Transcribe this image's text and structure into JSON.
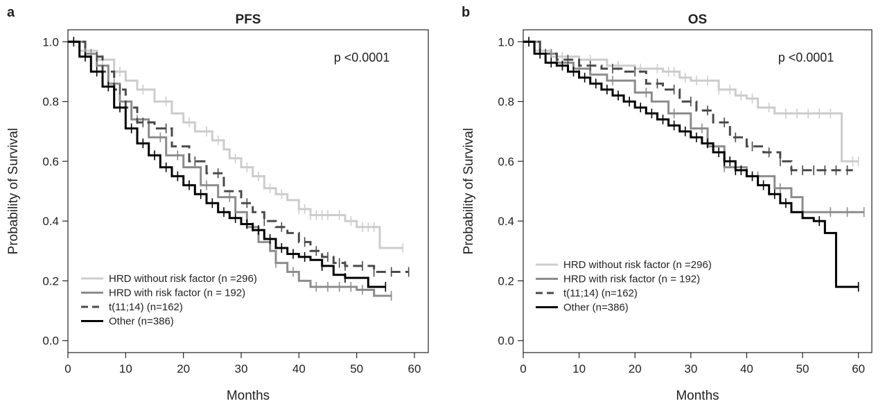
{
  "chart_data": [
    {
      "type": "line",
      "panel_letter": "a",
      "title": "PFS",
      "xlabel": "Months",
      "ylabel": "Probability of Survival",
      "annotation": "p <0.0001",
      "xlim": [
        0,
        60
      ],
      "ylim": [
        0,
        1
      ],
      "xticks": [
        "0",
        "10",
        "20",
        "30",
        "40",
        "50",
        "60"
      ],
      "yticks": [
        "0.0",
        "0.2",
        "0.4",
        "0.6",
        "0.8",
        "1.0"
      ],
      "legend_position": "bottom-left",
      "series": [
        {
          "name": "HRD without risk factor (n =296)",
          "style": "hrd_without",
          "x": [
            0,
            2,
            5,
            8,
            10,
            12,
            15,
            18,
            20,
            22,
            25,
            27,
            28,
            30,
            32,
            34,
            36,
            38,
            40,
            42,
            44,
            46,
            48,
            50,
            52,
            53,
            54,
            58
          ],
          "y": [
            1.0,
            0.97,
            0.94,
            0.9,
            0.87,
            0.84,
            0.8,
            0.76,
            0.73,
            0.7,
            0.67,
            0.64,
            0.61,
            0.58,
            0.55,
            0.51,
            0.49,
            0.47,
            0.44,
            0.42,
            0.42,
            0.42,
            0.4,
            0.38,
            0.38,
            0.38,
            0.31,
            0.31
          ],
          "censor_x": [
            3,
            6,
            9,
            13,
            17,
            21,
            24,
            26,
            29,
            31,
            33,
            35,
            37,
            40,
            41,
            42,
            43,
            44,
            45,
            47,
            49,
            51,
            52,
            53,
            58
          ]
        },
        {
          "name": "HRD with risk factor (n = 192)",
          "style": "hrd_with",
          "x": [
            0,
            3,
            5,
            7,
            9,
            11,
            14,
            17,
            20,
            23,
            26,
            29,
            31,
            33,
            35,
            36,
            38,
            40,
            42,
            44,
            46,
            48,
            50,
            52,
            53,
            56
          ],
          "y": [
            1.0,
            0.96,
            0.92,
            0.86,
            0.8,
            0.74,
            0.68,
            0.62,
            0.58,
            0.52,
            0.48,
            0.43,
            0.38,
            0.33,
            0.3,
            0.26,
            0.23,
            0.2,
            0.18,
            0.18,
            0.18,
            0.18,
            0.17,
            0.17,
            0.15,
            0.15
          ],
          "censor_x": [
            4,
            8,
            12,
            16,
            19,
            24,
            28,
            32,
            36,
            39,
            43,
            45,
            47,
            49,
            51,
            56
          ]
        },
        {
          "name": "t(11;14) (n=162)",
          "style": "t1114",
          "x": [
            0,
            3,
            6,
            8,
            10,
            12,
            15,
            18,
            21,
            24,
            27,
            30,
            32,
            34,
            36,
            38,
            40,
            42,
            44,
            46,
            48,
            52,
            53,
            59
          ],
          "y": [
            1.0,
            0.95,
            0.9,
            0.84,
            0.78,
            0.73,
            0.71,
            0.65,
            0.6,
            0.56,
            0.5,
            0.46,
            0.43,
            0.4,
            0.38,
            0.36,
            0.33,
            0.3,
            0.28,
            0.26,
            0.25,
            0.25,
            0.23,
            0.23
          ],
          "censor_x": [
            5,
            9,
            13,
            17,
            22,
            26,
            31,
            34,
            37,
            41,
            43,
            45,
            47,
            48,
            51,
            53,
            56,
            59
          ]
        },
        {
          "name": "Other (n=386)",
          "style": "other",
          "x": [
            0,
            2,
            4,
            6,
            8,
            10,
            12,
            14,
            16,
            18,
            20,
            22,
            24,
            26,
            28,
            30,
            32,
            34,
            36,
            38,
            40,
            42,
            44,
            46,
            48,
            50,
            52,
            55
          ],
          "y": [
            1.0,
            0.95,
            0.9,
            0.85,
            0.78,
            0.71,
            0.66,
            0.62,
            0.58,
            0.55,
            0.52,
            0.49,
            0.46,
            0.43,
            0.41,
            0.39,
            0.37,
            0.34,
            0.31,
            0.29,
            0.28,
            0.27,
            0.25,
            0.22,
            0.21,
            0.21,
            0.18,
            0.18
          ],
          "censor_x": [
            1,
            3,
            5,
            7,
            9,
            11,
            13,
            15,
            17,
            19,
            21,
            23,
            25,
            27,
            29,
            31,
            33,
            35,
            37,
            39,
            41,
            44,
            48,
            55
          ]
        }
      ]
    },
    {
      "type": "line",
      "panel_letter": "b",
      "title": "OS",
      "xlabel": "Months",
      "ylabel": "Probability of Survival",
      "annotation": "p <0.0001",
      "xlim": [
        0,
        60
      ],
      "ylim": [
        0,
        1
      ],
      "xticks": [
        "0",
        "10",
        "20",
        "30",
        "40",
        "50",
        "60"
      ],
      "yticks": [
        "0.0",
        "0.2",
        "0.4",
        "0.6",
        "0.8",
        "1.0"
      ],
      "legend_position": "bottom-left",
      "series": [
        {
          "name": "HRD without risk factor (n =296)",
          "style": "hrd_without",
          "x": [
            0,
            2,
            5,
            10,
            15,
            20,
            25,
            28,
            30,
            35,
            38,
            40,
            42,
            45,
            50,
            55,
            57,
            60
          ],
          "y": [
            1.0,
            0.97,
            0.95,
            0.94,
            0.92,
            0.91,
            0.9,
            0.88,
            0.87,
            0.84,
            0.82,
            0.81,
            0.78,
            0.76,
            0.76,
            0.76,
            0.6,
            0.6
          ],
          "censor_x": [
            3,
            7,
            12,
            17,
            21,
            24,
            26,
            27,
            29,
            31,
            33,
            35,
            37,
            39,
            41,
            44,
            47,
            49,
            51,
            53,
            55,
            59,
            60
          ]
        },
        {
          "name": "HRD with risk factor (n = 192)",
          "style": "hrd_with",
          "x": [
            0,
            3,
            6,
            9,
            12,
            15,
            20,
            23,
            26,
            30,
            33,
            36,
            40,
            45,
            48,
            50,
            52,
            55,
            61
          ],
          "y": [
            1.0,
            0.96,
            0.93,
            0.91,
            0.89,
            0.87,
            0.83,
            0.8,
            0.76,
            0.71,
            0.65,
            0.58,
            0.55,
            0.51,
            0.48,
            0.43,
            0.43,
            0.43,
            0.43
          ],
          "censor_x": [
            5,
            10,
            16,
            22,
            27,
            32,
            36,
            42,
            46,
            50,
            55,
            58,
            61
          ]
        },
        {
          "name": "t(11;14) (n=162)",
          "style": "t1114",
          "x": [
            0,
            3,
            6,
            10,
            14,
            18,
            22,
            25,
            28,
            31,
            34,
            37,
            40,
            43,
            46,
            48,
            50,
            59
          ],
          "y": [
            1.0,
            0.96,
            0.94,
            0.92,
            0.91,
            0.9,
            0.86,
            0.84,
            0.8,
            0.77,
            0.73,
            0.68,
            0.65,
            0.63,
            0.6,
            0.57,
            0.57,
            0.57
          ],
          "censor_x": [
            4,
            8,
            12,
            16,
            20,
            24,
            27,
            30,
            33,
            36,
            38,
            41,
            44,
            46,
            48,
            50,
            52,
            54,
            56,
            58
          ]
        },
        {
          "name": "Other (n=386)",
          "style": "other",
          "x": [
            0,
            2,
            4,
            6,
            8,
            10,
            12,
            14,
            16,
            18,
            20,
            22,
            24,
            26,
            28,
            30,
            32,
            34,
            36,
            38,
            40,
            42,
            44,
            46,
            48,
            50,
            52,
            54,
            56,
            58,
            60
          ],
          "y": [
            1.0,
            0.96,
            0.93,
            0.92,
            0.9,
            0.88,
            0.86,
            0.84,
            0.82,
            0.8,
            0.78,
            0.76,
            0.74,
            0.72,
            0.7,
            0.68,
            0.66,
            0.63,
            0.6,
            0.57,
            0.55,
            0.52,
            0.49,
            0.46,
            0.43,
            0.41,
            0.4,
            0.36,
            0.18,
            0.18,
            0.18
          ],
          "censor_x": [
            1,
            3,
            5,
            7,
            9,
            11,
            13,
            15,
            17,
            19,
            21,
            23,
            25,
            27,
            29,
            31,
            33,
            35,
            36,
            37,
            38,
            39,
            41,
            43,
            45,
            47,
            53,
            60
          ]
        }
      ]
    }
  ],
  "styles": {
    "hrd_without": {
      "color": "#cccccc",
      "dash": ""
    },
    "hrd_with": {
      "color": "#8c8c8c",
      "dash": ""
    },
    "t1114": {
      "color": "#4a4a4a",
      "dash": "14,7"
    },
    "other": {
      "color": "#000000",
      "dash": ""
    }
  }
}
